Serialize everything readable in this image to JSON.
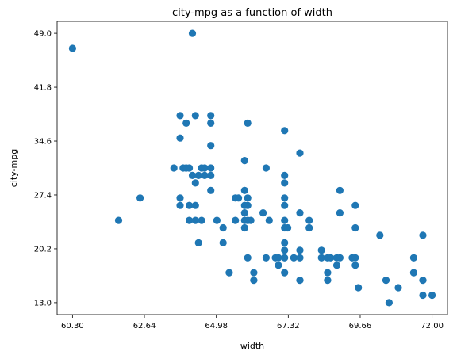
{
  "chart_data": {
    "type": "scatter",
    "title": "city-mpg as a function of width",
    "xlabel": "width",
    "ylabel": "city-mpg",
    "xlim": [
      59.8,
      72.5
    ],
    "ylim": [
      11.4,
      50.6
    ],
    "xticks": [
      60.3,
      62.64,
      64.98,
      67.32,
      69.66,
      72.0
    ],
    "xtick_labels": [
      "60.30",
      "62.64",
      "64.98",
      "67.32",
      "69.66",
      "72.00"
    ],
    "yticks": [
      13.0,
      20.2,
      27.4,
      34.6,
      41.8,
      49.0
    ],
    "ytick_labels": [
      "13.0",
      "20.2",
      "27.4",
      "34.6",
      "41.8",
      "49.0"
    ],
    "grid": false,
    "marker_color": "#1f77b4",
    "points": [
      [
        60.3,
        47
      ],
      [
        61.8,
        24
      ],
      [
        62.5,
        27
      ],
      [
        63.6,
        31
      ],
      [
        63.8,
        38
      ],
      [
        63.8,
        35
      ],
      [
        63.8,
        27
      ],
      [
        63.8,
        26
      ],
      [
        63.9,
        31
      ],
      [
        64.0,
        37
      ],
      [
        64.0,
        31
      ],
      [
        64.1,
        31
      ],
      [
        64.1,
        26
      ],
      [
        64.1,
        24
      ],
      [
        64.2,
        30
      ],
      [
        64.2,
        49
      ],
      [
        64.3,
        38
      ],
      [
        64.3,
        29
      ],
      [
        64.3,
        26
      ],
      [
        64.3,
        24
      ],
      [
        64.4,
        30
      ],
      [
        64.4,
        21
      ],
      [
        64.5,
        31
      ],
      [
        64.5,
        24
      ],
      [
        64.6,
        30
      ],
      [
        64.6,
        31
      ],
      [
        64.8,
        37
      ],
      [
        64.8,
        38
      ],
      [
        64.8,
        34
      ],
      [
        64.8,
        28
      ],
      [
        64.8,
        31
      ],
      [
        64.8,
        30
      ],
      [
        65.0,
        24
      ],
      [
        65.2,
        23
      ],
      [
        65.2,
        21
      ],
      [
        65.4,
        17
      ],
      [
        65.6,
        27
      ],
      [
        65.6,
        24
      ],
      [
        65.7,
        27
      ],
      [
        65.9,
        32
      ],
      [
        65.9,
        28
      ],
      [
        65.9,
        25
      ],
      [
        65.9,
        24
      ],
      [
        65.9,
        23
      ],
      [
        65.9,
        26
      ],
      [
        66.0,
        37
      ],
      [
        66.0,
        19
      ],
      [
        66.0,
        27
      ],
      [
        66.0,
        26
      ],
      [
        66.0,
        24
      ],
      [
        66.1,
        24
      ],
      [
        66.2,
        17
      ],
      [
        66.2,
        16
      ],
      [
        66.5,
        25
      ],
      [
        66.6,
        31
      ],
      [
        66.6,
        19
      ],
      [
        66.7,
        24
      ],
      [
        66.9,
        19
      ],
      [
        67.0,
        18
      ],
      [
        67.0,
        19
      ],
      [
        67.2,
        36
      ],
      [
        67.2,
        30
      ],
      [
        67.2,
        29
      ],
      [
        67.2,
        27
      ],
      [
        67.2,
        26
      ],
      [
        67.2,
        24
      ],
      [
        67.2,
        23
      ],
      [
        67.2,
        21
      ],
      [
        67.2,
        20
      ],
      [
        67.2,
        19
      ],
      [
        67.2,
        17
      ],
      [
        67.3,
        23
      ],
      [
        67.5,
        19
      ],
      [
        67.7,
        33
      ],
      [
        67.7,
        25
      ],
      [
        67.7,
        20
      ],
      [
        67.7,
        19
      ],
      [
        67.7,
        16
      ],
      [
        68.0,
        24
      ],
      [
        68.0,
        23
      ],
      [
        68.4,
        20
      ],
      [
        68.4,
        19
      ],
      [
        68.6,
        19
      ],
      [
        68.6,
        17
      ],
      [
        68.6,
        16
      ],
      [
        68.7,
        19
      ],
      [
        68.9,
        18
      ],
      [
        68.9,
        19
      ],
      [
        69.0,
        28
      ],
      [
        69.0,
        25
      ],
      [
        69.0,
        19
      ],
      [
        69.4,
        19
      ],
      [
        69.5,
        26
      ],
      [
        69.5,
        23
      ],
      [
        69.5,
        19
      ],
      [
        69.5,
        18
      ],
      [
        69.6,
        15
      ],
      [
        70.3,
        22
      ],
      [
        70.5,
        16
      ],
      [
        70.6,
        13
      ],
      [
        70.9,
        15
      ],
      [
        71.4,
        19
      ],
      [
        71.4,
        17
      ],
      [
        71.7,
        22
      ],
      [
        71.7,
        16
      ],
      [
        71.7,
        14
      ],
      [
        72.0,
        14
      ]
    ]
  }
}
